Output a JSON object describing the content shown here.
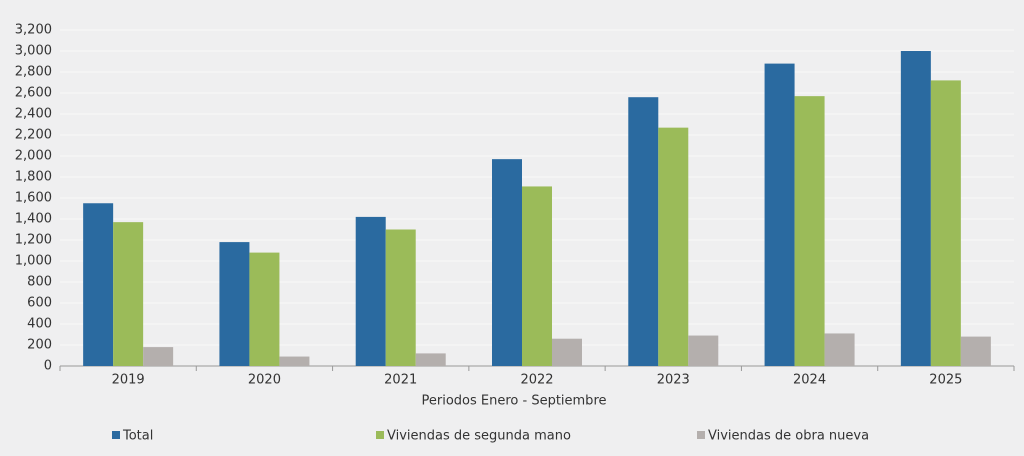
{
  "chart_data": {
    "type": "bar",
    "x_label": "Periodos Enero - Septiembre",
    "categories": [
      "2019",
      "2020",
      "2021",
      "2022",
      "2023",
      "2024",
      "2025"
    ],
    "series": [
      {
        "name": "Total",
        "color": "#2a6aa0",
        "values": [
          1550,
          1180,
          1420,
          1970,
          2560,
          2880,
          3000
        ]
      },
      {
        "name": "Viviendas de segunda mano",
        "color": "#9bbb59",
        "values": [
          1370,
          1080,
          1300,
          1710,
          2270,
          2570,
          2720
        ]
      },
      {
        "name": "Viviendas de obra nueva",
        "color": "#b4afad",
        "values": [
          180,
          90,
          120,
          260,
          290,
          310,
          280
        ]
      }
    ],
    "ylim": [
      0,
      3200
    ],
    "yticks": [
      0,
      200,
      400,
      600,
      800,
      {
        "value": 1000,
        "label": "1,000"
      },
      {
        "value": 1200,
        "label": "1,200"
      },
      {
        "value": 1400,
        "label": "1,400"
      },
      {
        "value": 1600,
        "label": "1,600"
      },
      {
        "value": 1800,
        "label": "1,800"
      },
      {
        "value": 2000,
        "label": "2,000"
      },
      {
        "value": 2200,
        "label": "2,200"
      },
      {
        "value": 2400,
        "label": "2,400"
      },
      {
        "value": 2600,
        "label": "2,600"
      },
      {
        "value": 2800,
        "label": "2,800"
      },
      {
        "value": 3000,
        "label": "3,000"
      },
      {
        "value": 3200,
        "label": "3,200"
      }
    ],
    "grid": true,
    "legend": "bottom"
  }
}
